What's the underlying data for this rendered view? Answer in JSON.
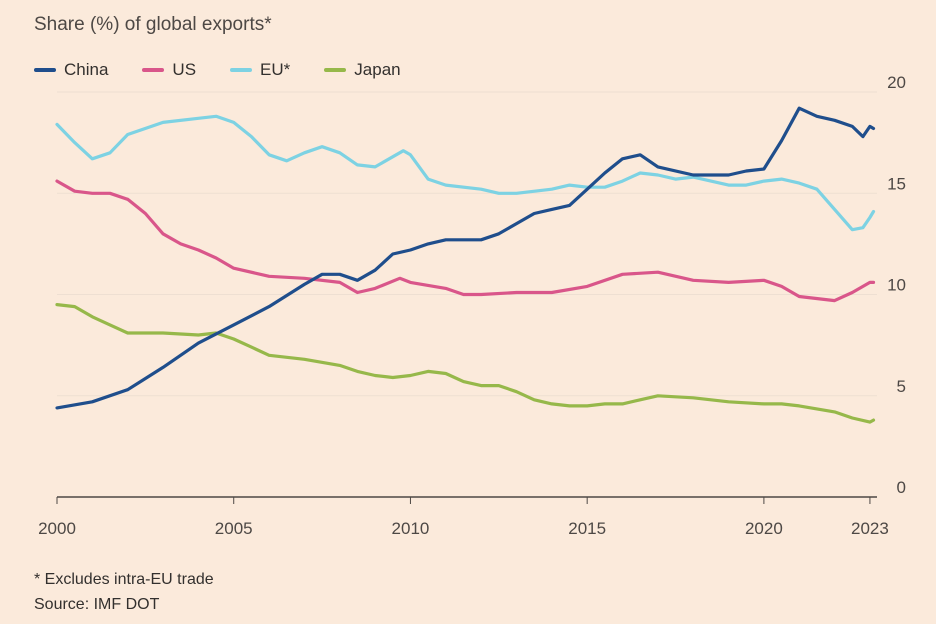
{
  "chart_data": {
    "type": "line",
    "title": "Share (%) of global exports*",
    "ylim": [
      0,
      20
    ],
    "xlim": [
      2000,
      2023.2
    ],
    "y_ticks": [
      "0",
      "5",
      "10",
      "15",
      "20"
    ],
    "x_ticks": [
      "2000",
      "2005",
      "2010",
      "2015",
      "2020",
      "2023"
    ],
    "legend_position": "top-left",
    "grid": "horizontal",
    "footnote": "* Excludes intra-EU trade",
    "source": "Source: IMF DOT",
    "series": [
      {
        "name": "China",
        "color": "#1f4e8c",
        "points": [
          [
            2000,
            4.4
          ],
          [
            2001,
            4.7
          ],
          [
            2002,
            5.3
          ],
          [
            2003,
            6.4
          ],
          [
            2004,
            7.6
          ],
          [
            2005,
            8.5
          ],
          [
            2006,
            9.4
          ],
          [
            2007,
            10.5
          ],
          [
            2007.5,
            11.0
          ],
          [
            2008,
            11.0
          ],
          [
            2008.5,
            10.7
          ],
          [
            2009,
            11.2
          ],
          [
            2009.5,
            12.0
          ],
          [
            2010,
            12.2
          ],
          [
            2010.5,
            12.5
          ],
          [
            2011,
            12.7
          ],
          [
            2012,
            12.7
          ],
          [
            2012.5,
            13.0
          ],
          [
            2013,
            13.5
          ],
          [
            2013.5,
            14.0
          ],
          [
            2014,
            14.2
          ],
          [
            2014.5,
            14.4
          ],
          [
            2015,
            15.2
          ],
          [
            2015.5,
            16.0
          ],
          [
            2016,
            16.7
          ],
          [
            2016.5,
            16.9
          ],
          [
            2017,
            16.3
          ],
          [
            2018,
            15.9
          ],
          [
            2019,
            15.9
          ],
          [
            2019.5,
            16.1
          ],
          [
            2020,
            16.2
          ],
          [
            2020.5,
            17.6
          ],
          [
            2021,
            19.2
          ],
          [
            2021.5,
            18.8
          ],
          [
            2022,
            18.6
          ],
          [
            2022.5,
            18.3
          ],
          [
            2022.8,
            17.8
          ],
          [
            2023,
            18.3
          ],
          [
            2023.1,
            18.2
          ]
        ]
      },
      {
        "name": "US",
        "color": "#d9568a",
        "points": [
          [
            2000,
            15.6
          ],
          [
            2000.5,
            15.1
          ],
          [
            2001,
            15.0
          ],
          [
            2001.5,
            15.0
          ],
          [
            2002,
            14.7
          ],
          [
            2002.5,
            14.0
          ],
          [
            2003,
            13.0
          ],
          [
            2003.5,
            12.5
          ],
          [
            2004,
            12.2
          ],
          [
            2004.5,
            11.8
          ],
          [
            2005,
            11.3
          ],
          [
            2006,
            10.9
          ],
          [
            2007,
            10.8
          ],
          [
            2008,
            10.6
          ],
          [
            2008.5,
            10.1
          ],
          [
            2009,
            10.3
          ],
          [
            2009.7,
            10.8
          ],
          [
            2010,
            10.6
          ],
          [
            2011,
            10.3
          ],
          [
            2011.5,
            10.0
          ],
          [
            2012,
            10.0
          ],
          [
            2013,
            10.1
          ],
          [
            2014,
            10.1
          ],
          [
            2015,
            10.4
          ],
          [
            2016,
            11.0
          ],
          [
            2017,
            11.1
          ],
          [
            2018,
            10.7
          ],
          [
            2019,
            10.6
          ],
          [
            2020,
            10.7
          ],
          [
            2020.5,
            10.4
          ],
          [
            2021,
            9.9
          ],
          [
            2022,
            9.7
          ],
          [
            2022.5,
            10.1
          ],
          [
            2023,
            10.6
          ],
          [
            2023.1,
            10.6
          ]
        ]
      },
      {
        "name": "EU*",
        "color": "#7dd2e3",
        "points": [
          [
            2000,
            18.4
          ],
          [
            2000.5,
            17.5
          ],
          [
            2001,
            16.7
          ],
          [
            2001.5,
            17.0
          ],
          [
            2002,
            17.9
          ],
          [
            2003,
            18.5
          ],
          [
            2004,
            18.7
          ],
          [
            2004.5,
            18.8
          ],
          [
            2005,
            18.5
          ],
          [
            2005.5,
            17.8
          ],
          [
            2006,
            16.9
          ],
          [
            2006.5,
            16.6
          ],
          [
            2007,
            17.0
          ],
          [
            2007.5,
            17.3
          ],
          [
            2008,
            17.0
          ],
          [
            2008.5,
            16.4
          ],
          [
            2009,
            16.3
          ],
          [
            2009.8,
            17.1
          ],
          [
            2010,
            16.9
          ],
          [
            2010.5,
            15.7
          ],
          [
            2011,
            15.4
          ],
          [
            2012,
            15.2
          ],
          [
            2012.5,
            15.0
          ],
          [
            2013,
            15.0
          ],
          [
            2014,
            15.2
          ],
          [
            2014.5,
            15.4
          ],
          [
            2015,
            15.3
          ],
          [
            2015.5,
            15.3
          ],
          [
            2016,
            15.6
          ],
          [
            2016.5,
            16.0
          ],
          [
            2017,
            15.9
          ],
          [
            2017.5,
            15.7
          ],
          [
            2018,
            15.8
          ],
          [
            2018.5,
            15.6
          ],
          [
            2019,
            15.4
          ],
          [
            2019.5,
            15.4
          ],
          [
            2020,
            15.6
          ],
          [
            2020.5,
            15.7
          ],
          [
            2021,
            15.5
          ],
          [
            2021.5,
            15.2
          ],
          [
            2022,
            14.2
          ],
          [
            2022.5,
            13.2
          ],
          [
            2022.8,
            13.3
          ],
          [
            2023,
            13.8
          ],
          [
            2023.1,
            14.1
          ]
        ]
      },
      {
        "name": "Japan",
        "color": "#96b84a",
        "points": [
          [
            2000,
            9.5
          ],
          [
            2000.5,
            9.4
          ],
          [
            2001,
            8.9
          ],
          [
            2001.5,
            8.5
          ],
          [
            2002,
            8.1
          ],
          [
            2003,
            8.1
          ],
          [
            2004,
            8.0
          ],
          [
            2004.5,
            8.1
          ],
          [
            2005,
            7.8
          ],
          [
            2005.5,
            7.4
          ],
          [
            2006,
            7.0
          ],
          [
            2007,
            6.8
          ],
          [
            2008,
            6.5
          ],
          [
            2008.5,
            6.2
          ],
          [
            2009,
            6.0
          ],
          [
            2009.5,
            5.9
          ],
          [
            2010,
            6.0
          ],
          [
            2010.5,
            6.2
          ],
          [
            2011,
            6.1
          ],
          [
            2011.5,
            5.7
          ],
          [
            2012,
            5.5
          ],
          [
            2012.5,
            5.5
          ],
          [
            2013,
            5.2
          ],
          [
            2013.5,
            4.8
          ],
          [
            2014,
            4.6
          ],
          [
            2014.5,
            4.5
          ],
          [
            2015,
            4.5
          ],
          [
            2015.5,
            4.6
          ],
          [
            2016,
            4.6
          ],
          [
            2016.5,
            4.8
          ],
          [
            2017,
            5.0
          ],
          [
            2018,
            4.9
          ],
          [
            2019,
            4.7
          ],
          [
            2020,
            4.6
          ],
          [
            2020.5,
            4.6
          ],
          [
            2021,
            4.5
          ],
          [
            2022,
            4.2
          ],
          [
            2022.5,
            3.9
          ],
          [
            2023,
            3.7
          ],
          [
            2023.1,
            3.8
          ]
        ]
      }
    ]
  }
}
